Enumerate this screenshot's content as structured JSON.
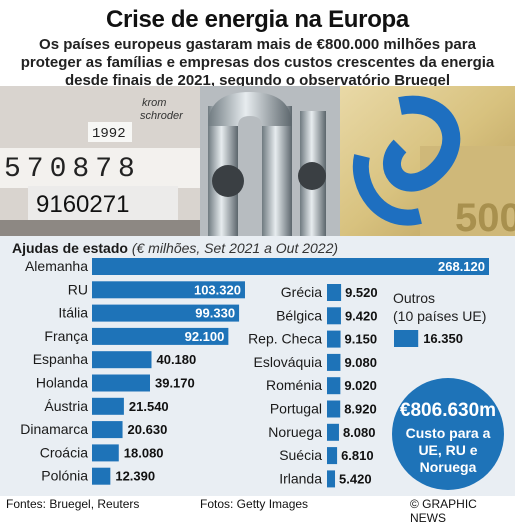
{
  "title": "Crise de energia na Europa",
  "subtitle": "Os países europeus gastaram mais de €800.000 milhões para proteger as famílias e empresas dos custos crescentes da energia desde finais de 2021, segundo o observatório Bruegel",
  "chart_data": {
    "type": "bar",
    "title": "Ajudas de estado",
    "units": "(€ milhões, Set 2021 a Out 2022)",
    "series": [
      {
        "name": "",
        "categories": [
          "Alemanha",
          "RU",
          "Itália",
          "França",
          "Espanha",
          "Holanda",
          "Áustria",
          "Dinamarca",
          "Croácia",
          "Polónia"
        ],
        "values": [
          268120,
          103320,
          99330,
          92100,
          40180,
          39170,
          21540,
          20630,
          18080,
          12390
        ],
        "labels": [
          "268.120",
          "103.320",
          "99.330",
          "92.100",
          "40.180",
          "39.170",
          "21.540",
          "20.630",
          "18.080",
          "12.390"
        ]
      },
      {
        "name": "",
        "categories": [
          "Grécia",
          "Bélgica",
          "Rep. Checa",
          "Eslováquia",
          "Roménia",
          "Portugal",
          "Noruega",
          "Suécia",
          "Irlanda"
        ],
        "values": [
          9520,
          9420,
          9150,
          9080,
          9020,
          8920,
          8080,
          6810,
          5420
        ],
        "labels": [
          "9.520",
          "9.420",
          "9.150",
          "9.080",
          "9.020",
          "8.920",
          "8.080",
          "6.810",
          "5.420"
        ]
      },
      {
        "name": "",
        "categories": [
          "Outros (10 países UE)"
        ],
        "values": [
          16350
        ],
        "labels": [
          "16.350"
        ]
      }
    ],
    "others_label": [
      "Outros",
      "(10 países UE)"
    ],
    "color": "#1e73b8"
  },
  "total": {
    "value": "€806.630m",
    "description": [
      "Custo para a",
      "UE, RU e",
      "Noruega"
    ]
  },
  "footer": {
    "sources": "Fontes: Bruegel, Reuters",
    "photos": "Fotos: Getty Images",
    "credit": "© GRAPHIC NEWS"
  },
  "photo": {
    "meter_digits": "570878",
    "meter_number": "9160271",
    "meter_brand": [
      "krom",
      "schroder"
    ],
    "meter_year": "1992",
    "banknote_value": "500"
  }
}
